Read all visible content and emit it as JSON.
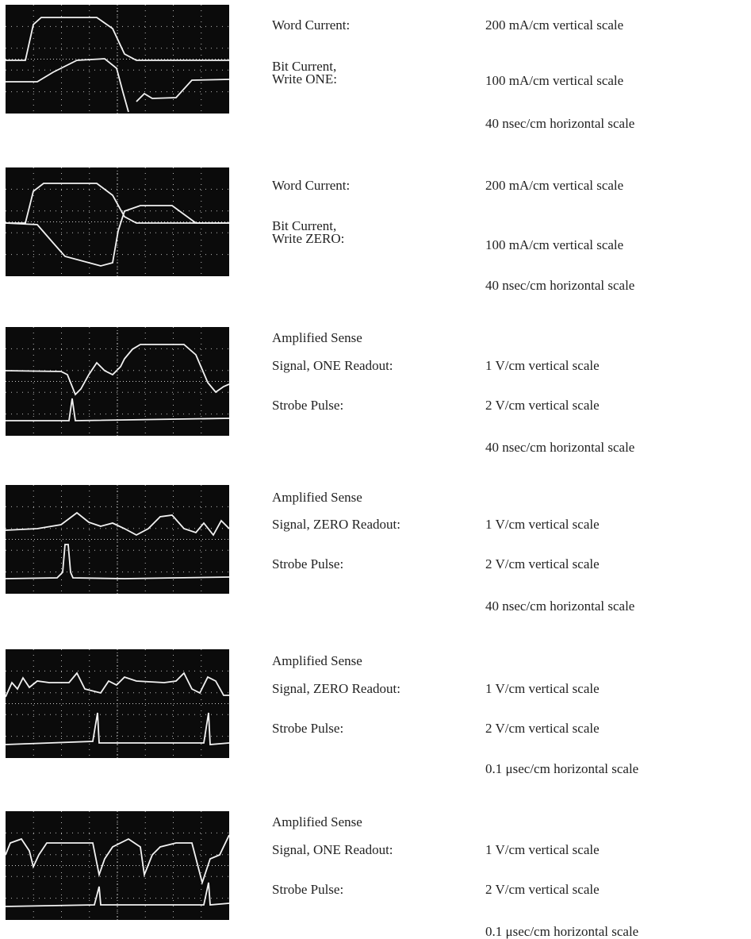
{
  "panels": [
    {
      "labels": [
        "Word Current:",
        "Bit Current,",
        "Write ONE:"
      ],
      "scales": [
        "200 mA/cm vertical scale",
        "100 mA/cm vertical scale",
        "40 nsec/cm horizontal scale"
      ]
    },
    {
      "labels": [
        "Word Current:",
        "Bit Current,",
        "Write ZERO:"
      ],
      "scales": [
        "200 mA/cm vertical scale",
        "100 mA/cm vertical scale",
        "40 nsec/cm horizontal scale"
      ]
    },
    {
      "labels": [
        "Amplified Sense",
        "Signal, ONE Readout:",
        "Strobe Pulse:"
      ],
      "scales": [
        "1 V/cm vertical scale",
        "2 V/cm vertical scale",
        "40 nsec/cm horizontal scale"
      ]
    },
    {
      "labels": [
        "Amplified Sense",
        "Signal, ZERO Readout:",
        "Strobe Pulse:"
      ],
      "scales": [
        "1 V/cm vertical scale",
        "2 V/cm vertical scale",
        "40 nsec/cm horizontal scale"
      ]
    },
    {
      "labels": [
        "Amplified Sense",
        "Signal, ZERO Readout:",
        "Strobe Pulse:"
      ],
      "scales": [
        "1 V/cm vertical scale",
        "2 V/cm vertical scale",
        "0.1 μsec/cm horizontal scale"
      ]
    },
    {
      "labels": [
        "Amplified Sense",
        "Signal, ONE Readout:",
        "Strobe Pulse:"
      ],
      "scales": [
        "1 V/cm vertical scale",
        "2 V/cm vertical scale",
        "0.1 μsec/cm horizontal scale"
      ]
    }
  ]
}
